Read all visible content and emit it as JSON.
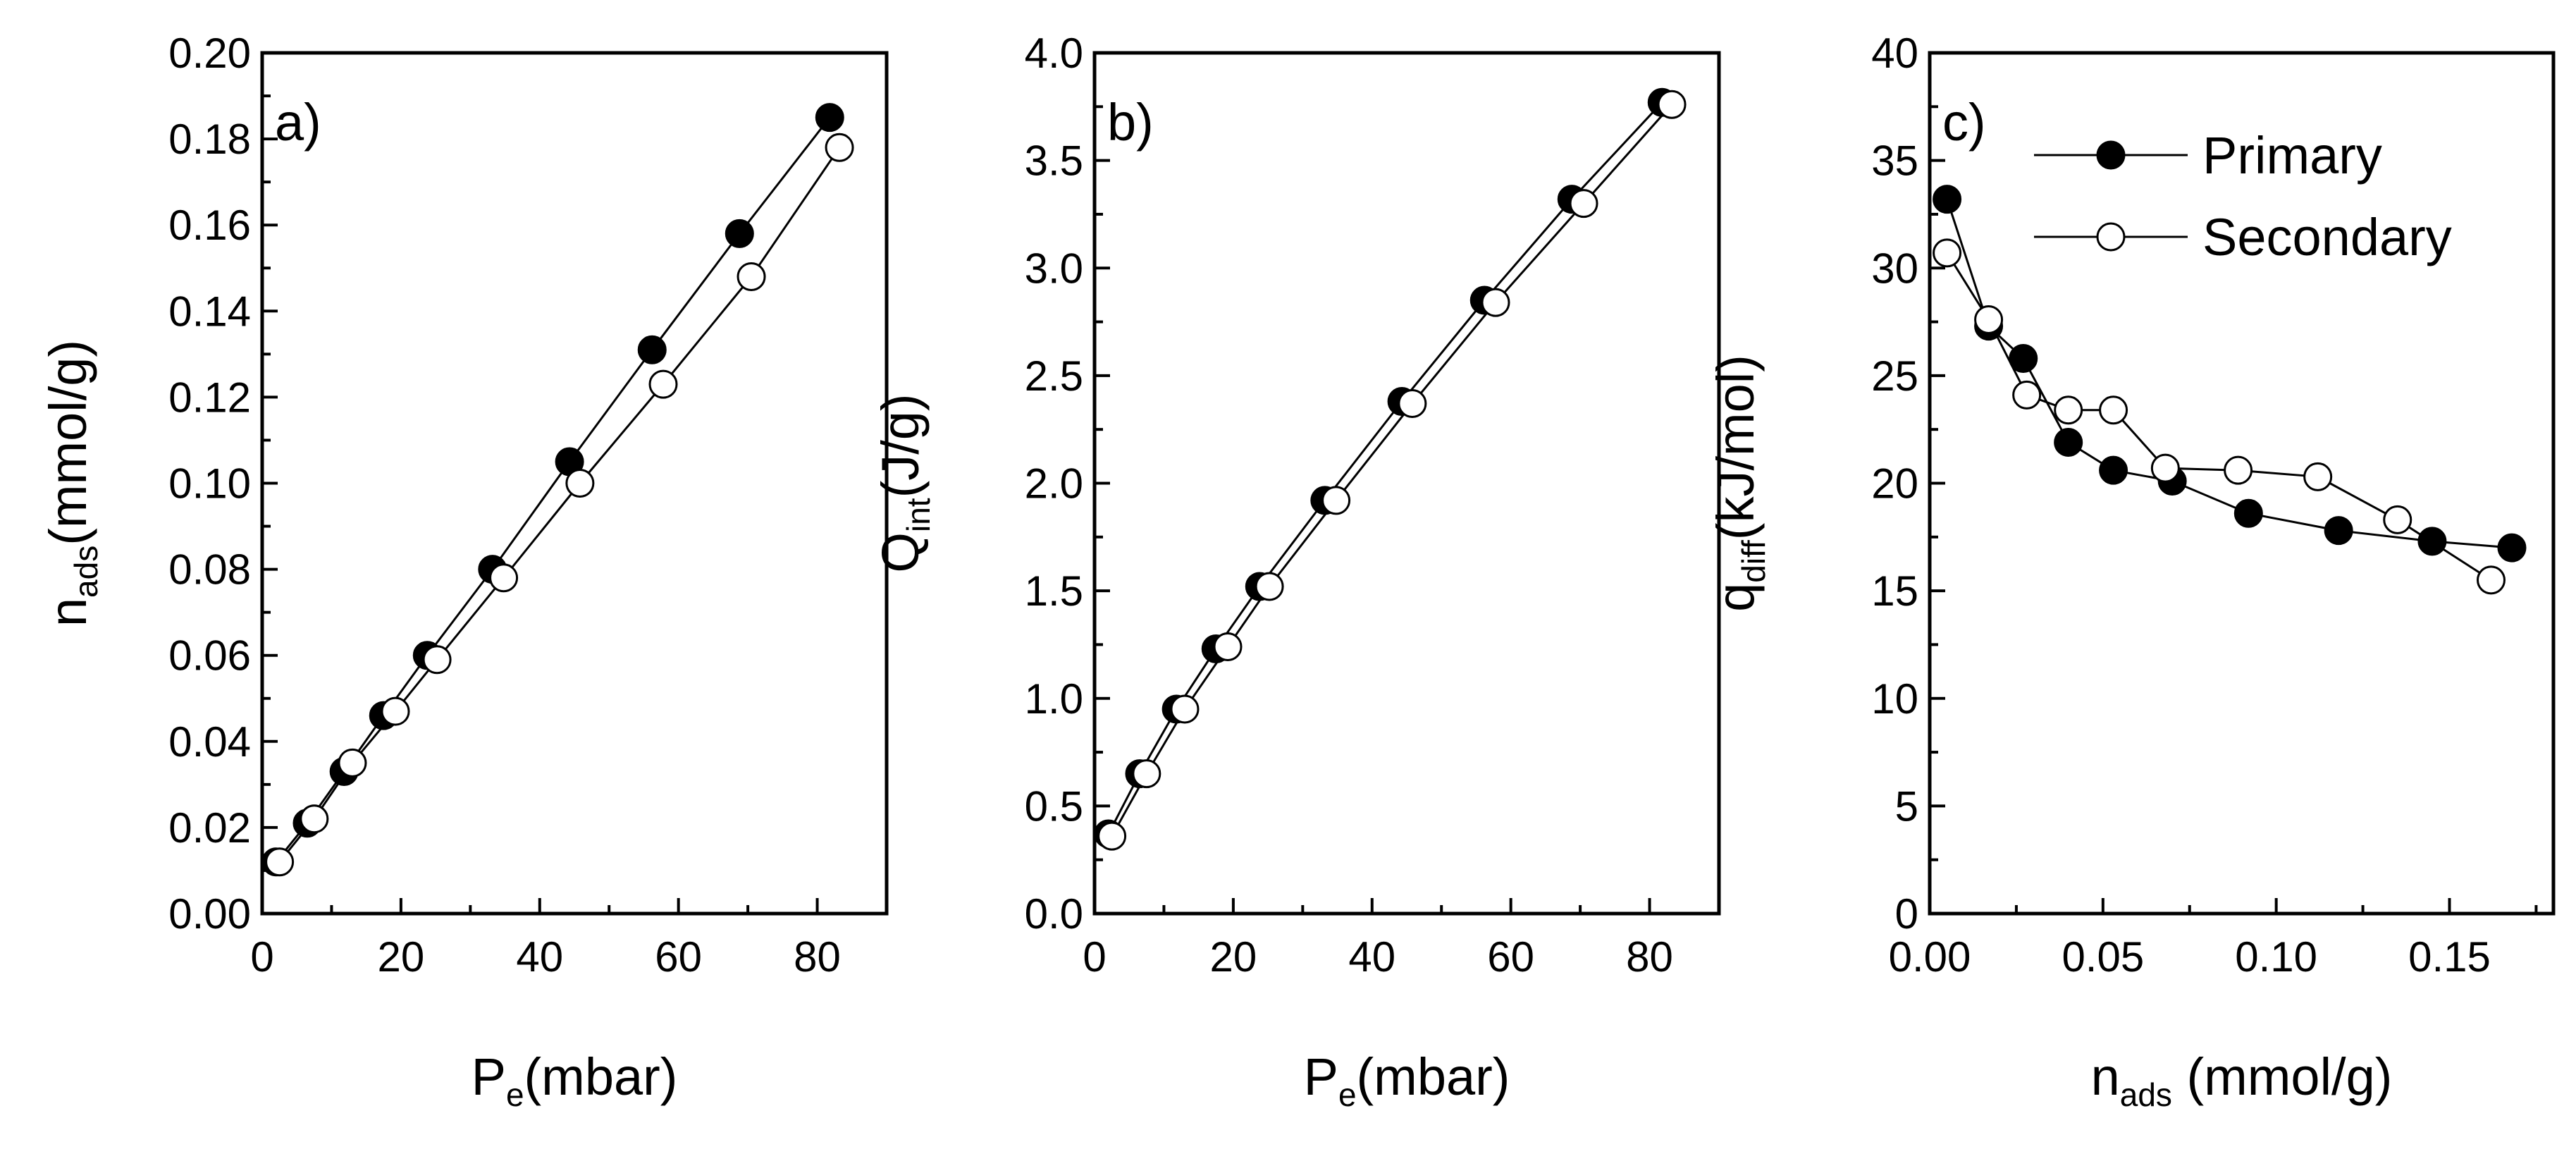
{
  "chart_data": [
    {
      "panel": "a)",
      "type": "line",
      "xlabel": {
        "base": "P",
        "sub": "e",
        "rest": "(mbar)"
      },
      "ylabel": {
        "base": "n",
        "sub": "ads",
        "rest": "(mmol/g)"
      },
      "xlim": [
        0,
        90
      ],
      "ylim": [
        0,
        0.2
      ],
      "xticks": [
        "0",
        "20",
        "40",
        "60",
        "80"
      ],
      "xtick_values": [
        0,
        20,
        40,
        60,
        80
      ],
      "yticks": [
        "0.00",
        "0.02",
        "0.04",
        "0.06",
        "0.08",
        "0.10",
        "0.12",
        "0.14",
        "0.16",
        "0.18",
        "0.20"
      ],
      "ytick_values": [
        0,
        0.02,
        0.04,
        0.06,
        0.08,
        0.1,
        0.12,
        0.14,
        0.16,
        0.18,
        0.2
      ],
      "series": [
        {
          "name": "Primary",
          "marker": "filled",
          "x": [
            2.0,
            6.5,
            11.8,
            17.5,
            23.8,
            33.2,
            44.3,
            56.2,
            68.8,
            81.8
          ],
          "y": [
            0.012,
            0.021,
            0.033,
            0.046,
            0.06,
            0.08,
            0.105,
            0.131,
            0.158,
            0.185
          ]
        },
        {
          "name": "Secondary",
          "marker": "open",
          "x": [
            2.5,
            7.5,
            13.0,
            19.2,
            25.2,
            34.8,
            45.8,
            57.8,
            70.5,
            83.2
          ],
          "y": [
            0.012,
            0.022,
            0.035,
            0.047,
            0.059,
            0.078,
            0.1,
            0.123,
            0.148,
            0.178
          ]
        }
      ]
    },
    {
      "panel": "b)",
      "type": "line",
      "xlabel": {
        "base": "P",
        "sub": "e",
        "rest": "(mbar)"
      },
      "ylabel": {
        "base": "Q",
        "sub": "int",
        "rest": "(J/g)"
      },
      "xlim": [
        0,
        90
      ],
      "ylim": [
        0,
        4.0
      ],
      "xticks": [
        "0",
        "20",
        "40",
        "60",
        "80"
      ],
      "xtick_values": [
        0,
        20,
        40,
        60,
        80
      ],
      "yticks": [
        "0.0",
        "0.5",
        "1.0",
        "1.5",
        "2.0",
        "2.5",
        "3.0",
        "3.5",
        "4.0"
      ],
      "ytick_values": [
        0,
        0.5,
        1.0,
        1.5,
        2.0,
        2.5,
        3.0,
        3.5,
        4.0
      ],
      "series": [
        {
          "name": "Primary",
          "marker": "filled",
          "x": [
            2.0,
            6.5,
            11.8,
            17.5,
            23.8,
            33.2,
            44.3,
            56.2,
            68.8,
            81.8
          ],
          "y": [
            0.37,
            0.65,
            0.95,
            1.23,
            1.52,
            1.92,
            2.38,
            2.85,
            3.32,
            3.77
          ]
        },
        {
          "name": "Secondary",
          "marker": "open",
          "x": [
            2.5,
            7.5,
            13.0,
            19.2,
            25.2,
            34.8,
            45.8,
            57.8,
            70.5,
            83.2
          ],
          "y": [
            0.36,
            0.65,
            0.95,
            1.24,
            1.52,
            1.92,
            2.37,
            2.84,
            3.3,
            3.76
          ]
        }
      ]
    },
    {
      "panel": "c)",
      "type": "line",
      "xlabel": {
        "base": "n",
        "sub": "ads",
        "rest": " (mmol/g)"
      },
      "ylabel": {
        "base": "q",
        "sub": "diff",
        "rest": "(kJ/mol)"
      },
      "xlim": [
        0,
        0.18
      ],
      "ylim": [
        0,
        40
      ],
      "xticks": [
        "0.00",
        "0.05",
        "0.10",
        "0.15"
      ],
      "xtick_values": [
        0,
        0.05,
        0.1,
        0.15
      ],
      "yticks": [
        "0",
        "5",
        "10",
        "15",
        "20",
        "25",
        "30",
        "35",
        "40"
      ],
      "ytick_values": [
        0,
        5,
        10,
        15,
        20,
        25,
        30,
        35,
        40
      ],
      "legend": {
        "position": "top-right",
        "entries": [
          "Primary",
          "Secondary"
        ]
      },
      "series": [
        {
          "name": "Primary",
          "marker": "filled",
          "x": [
            0.005,
            0.017,
            0.027,
            0.04,
            0.053,
            0.07,
            0.092,
            0.118,
            0.145,
            0.168
          ],
          "y": [
            33.2,
            27.3,
            25.8,
            21.9,
            20.6,
            20.1,
            18.6,
            17.8,
            17.3,
            17.0
          ]
        },
        {
          "name": "Secondary",
          "marker": "open",
          "x": [
            0.005,
            0.017,
            0.028,
            0.04,
            0.053,
            0.068,
            0.089,
            0.112,
            0.135,
            0.162
          ],
          "y": [
            30.7,
            27.6,
            24.1,
            23.4,
            23.4,
            20.7,
            20.6,
            20.3,
            18.3,
            15.5
          ]
        }
      ]
    }
  ]
}
